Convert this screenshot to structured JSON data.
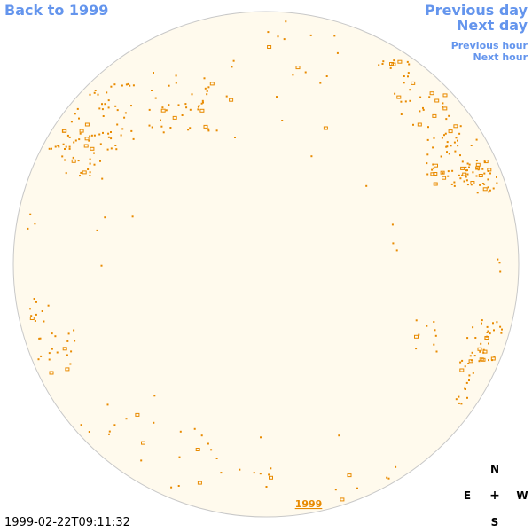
{
  "nav": {
    "back_label": "Back to 1999",
    "prev_day_label": "Previous day",
    "next_day_label": "Next day",
    "prev_hour_label": "Previous hour",
    "next_hour_label": "Next hour"
  },
  "disk": {
    "year_link": "1999",
    "fill_color": "#fffaed",
    "edge_color": "#c8c8c8",
    "feature_color": "#e88a00"
  },
  "compass": {
    "n": "N",
    "e": "E",
    "center": "+",
    "w": "W",
    "s": "S"
  },
  "timestamp": "1999-02-22T09:11:32"
}
